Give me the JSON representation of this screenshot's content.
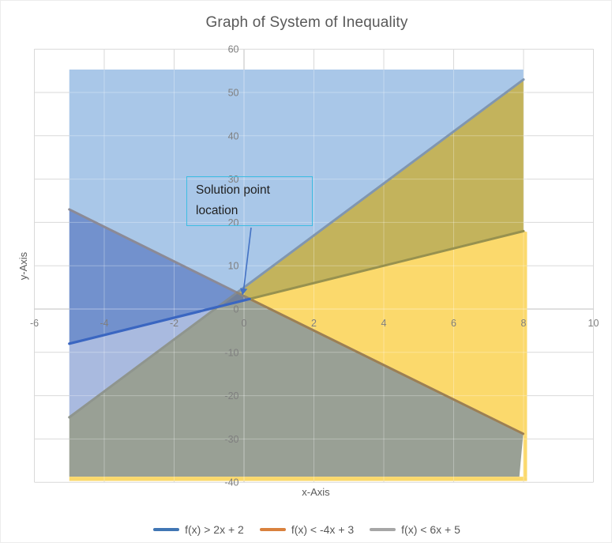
{
  "title": "Graph of System of Inequality",
  "axes": {
    "x_title": "x-Axis",
    "y_title": "y-Axis",
    "x_ticks": [
      -6,
      -4,
      -2,
      0,
      2,
      4,
      6,
      8,
      10
    ],
    "y_ticks": [
      60,
      50,
      40,
      30,
      20,
      10,
      0,
      -10,
      -20,
      -30,
      -40
    ],
    "tick_label_color": "#7f7f7f",
    "axis_title_color": "#595959"
  },
  "legend": [
    {
      "label": "f(x) > 2x + 2",
      "color": "#4176B4"
    },
    {
      "label": "f(x) < -4x + 3",
      "color": "#D9813E"
    },
    {
      "label": "f(x) < 6x + 5",
      "color": "#A6A6A6"
    }
  ],
  "annotation": {
    "text": "Solution point location",
    "lines": [
      "Solution point",
      "location"
    ],
    "border_color": "#3FBEE3",
    "arrow_color": "#4472C4",
    "target_point": [
      0,
      3.5
    ]
  },
  "chart_data": {
    "type": "area",
    "title": "Graph of System of Inequality",
    "xlabel": "x-Axis",
    "ylabel": "y-Axis",
    "x_axis_range": [
      -6,
      10
    ],
    "y_axis_range": [
      -40,
      60
    ],
    "x_data_domain": [
      -5,
      8
    ],
    "fill_top_y": 55.3,
    "fill_bottom_y": -39.7,
    "grid": {
      "x_step": 2,
      "y_step": 10,
      "color": "#D9D9D9",
      "axis_color": "#BFBFBF"
    },
    "lines": [
      {
        "name": "blue",
        "inequality": "f(x) > 2x + 2",
        "slope": 2,
        "intercept": 2,
        "base_color": "#4472C4"
      },
      {
        "name": "orange",
        "inequality": "f(x) < -4x + 3",
        "slope": -4,
        "intercept": 3,
        "base_color": "#ED7D31"
      },
      {
        "name": "gray",
        "inequality": "f(x) < 6x + 5",
        "slope": 6,
        "intercept": 5,
        "base_color": "#A5A5A5"
      }
    ],
    "intersections": {
      "blue_gray": [
        -0.75,
        0.5
      ],
      "orange_gray": [
        -0.2,
        3.8
      ],
      "blue_orange": [
        0.1667,
        2.3333
      ]
    },
    "solution_triangle": [
      [
        -0.75,
        0.5
      ],
      [
        -0.2,
        3.8
      ],
      [
        0.1667,
        2.3333
      ]
    ],
    "regions": [
      {
        "name": "region-blue-only",
        "color": "#A9C7E8",
        "points": [
          [
            -5,
            55.3
          ],
          [
            8,
            55.3
          ],
          [
            8,
            53
          ],
          [
            -0.2,
            3.8
          ],
          [
            -5,
            23
          ]
        ]
      },
      {
        "name": "region-blue-periwinkle-overlap",
        "color": "#7291CD",
        "points": [
          [
            -5,
            23
          ],
          [
            -0.2,
            3.8
          ],
          [
            -0.75,
            0.5
          ],
          [
            -5,
            -8
          ]
        ]
      },
      {
        "name": "region-periwinkle-only",
        "color": "#A9BADF",
        "points": [
          [
            -5,
            -8
          ],
          [
            -0.75,
            0.5
          ],
          [
            -5,
            -25
          ]
        ]
      },
      {
        "name": "region-gray-green-overlap",
        "color": "#99A095",
        "points": [
          [
            -5,
            -25
          ],
          [
            -0.75,
            0.5
          ],
          [
            0.1667,
            2.3333
          ],
          [
            7.99,
            -28.85
          ],
          [
            7.88,
            -38.7
          ],
          [
            -5,
            -38.7
          ]
        ]
      },
      {
        "name": "region-olive-overlap",
        "color": "#C3B35C",
        "points": [
          [
            -0.2,
            3.8
          ],
          [
            8,
            53
          ],
          [
            8,
            18
          ],
          [
            0.1667,
            2.3333
          ]
        ]
      },
      {
        "name": "region-solution-triangle",
        "color": "#71809A",
        "points": [
          [
            -0.75,
            0.5
          ],
          [
            -0.2,
            3.8
          ],
          [
            0.1667,
            2.3333
          ]
        ]
      },
      {
        "name": "region-yellow-wedge",
        "color": "#FBD96C",
        "points": [
          [
            0.1667,
            2.3333
          ],
          [
            8,
            18
          ],
          [
            8.1,
            17.8
          ],
          [
            8.1,
            -29.3
          ],
          [
            7.99,
            -28.85
          ]
        ]
      },
      {
        "name": "region-yellow-right-strip",
        "color": "#FBD96C",
        "points": [
          [
            7.99,
            -28.85
          ],
          [
            8.1,
            -29.3
          ],
          [
            8.1,
            -38.7
          ],
          [
            7.99,
            -38.7
          ]
        ]
      },
      {
        "name": "region-yellow-bottom-strip",
        "color": "#FBD96C",
        "points": [
          [
            -5,
            -38.7
          ],
          [
            8.1,
            -38.7
          ],
          [
            8.1,
            -39.7
          ],
          [
            -5,
            -39.7
          ]
        ]
      }
    ],
    "line_segments": [
      {
        "name": "gray-line-left",
        "color": "#8F958E",
        "width": 3,
        "from": [
          -5,
          -25
        ],
        "to": [
          -0.75,
          0.5
        ]
      },
      {
        "name": "gray-line-mid",
        "color": "#7F8A97",
        "width": 3,
        "from": [
          -0.75,
          0.5
        ],
        "to": [
          -0.2,
          3.8
        ]
      },
      {
        "name": "gray-line-right",
        "color": "#8096B0",
        "width": 3,
        "from": [
          -0.2,
          3.8
        ],
        "to": [
          8,
          53
        ]
      },
      {
        "name": "orange-line-left",
        "color": "#8B8A96",
        "width": 3,
        "from": [
          -5,
          23
        ],
        "to": [
          -0.2,
          3.8
        ]
      },
      {
        "name": "orange-line-mid",
        "color": "#8E8578",
        "width": 3,
        "from": [
          -0.2,
          3.8
        ],
        "to": [
          0.1667,
          2.3333
        ]
      },
      {
        "name": "orange-line-right",
        "color": "#9C7F54",
        "width": 3,
        "from": [
          0.1667,
          2.3333
        ],
        "to": [
          7.99,
          -28.8
        ]
      },
      {
        "name": "blue-line-right",
        "color": "#97914F",
        "width": 3,
        "from": [
          0.1667,
          2.3333
        ],
        "to": [
          8,
          18
        ]
      },
      {
        "name": "blue-line-left",
        "color": "#3A66C1",
        "width": 3.2,
        "from": [
          -5,
          -8
        ],
        "to": [
          0.1667,
          2.3333
        ]
      }
    ]
  }
}
